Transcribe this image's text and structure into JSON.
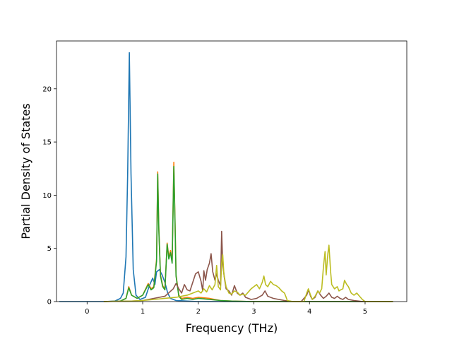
{
  "chart_data": {
    "type": "line",
    "title": "",
    "xlabel": "Frequency (THz)",
    "ylabel": "Partial Density of States",
    "xlim": [
      -0.55,
      5.75
    ],
    "ylim": [
      0,
      24.5
    ],
    "xticks": [
      0,
      1,
      2,
      3,
      4,
      5
    ],
    "yticks": [
      0,
      5,
      10,
      15,
      20
    ],
    "xtick_labels": [
      "0",
      "1",
      "2",
      "3",
      "4",
      "5"
    ],
    "ytick_labels": [
      "0",
      "5",
      "10",
      "15",
      "20"
    ],
    "grid": false,
    "legend": false,
    "series": [
      {
        "color": "#1f77b4",
        "points": [
          [
            -0.5,
            0
          ],
          [
            0.3,
            0
          ],
          [
            0.5,
            0.05
          ],
          [
            0.6,
            0.3
          ],
          [
            0.65,
            0.8
          ],
          [
            0.7,
            4.2
          ],
          [
            0.73,
            12
          ],
          [
            0.76,
            23.4
          ],
          [
            0.79,
            12
          ],
          [
            0.83,
            3
          ],
          [
            0.88,
            0.6
          ],
          [
            0.95,
            0.2
          ],
          [
            1.05,
            0.4
          ],
          [
            1.12,
            1.5
          ],
          [
            1.18,
            2.2
          ],
          [
            1.22,
            1.6
          ],
          [
            1.25,
            2.8
          ],
          [
            1.3,
            3.0
          ],
          [
            1.35,
            2.5
          ],
          [
            1.4,
            1.8
          ],
          [
            1.45,
            0.8
          ],
          [
            1.5,
            0.3
          ],
          [
            1.6,
            0.1
          ],
          [
            1.8,
            0.05
          ],
          [
            2.0,
            0
          ],
          [
            5.5,
            0
          ]
        ]
      },
      {
        "color": "#ff7f0e",
        "points": [
          [
            0.3,
            0
          ],
          [
            0.6,
            0.05
          ],
          [
            0.7,
            0.3
          ],
          [
            0.75,
            1.4
          ],
          [
            0.8,
            0.6
          ],
          [
            0.9,
            0.3
          ],
          [
            1.0,
            0.6
          ],
          [
            1.1,
            1.7
          ],
          [
            1.15,
            1.2
          ],
          [
            1.2,
            1.4
          ],
          [
            1.25,
            4.0
          ],
          [
            1.27,
            12.2
          ],
          [
            1.29,
            7
          ],
          [
            1.32,
            2.5
          ],
          [
            1.36,
            1.5
          ],
          [
            1.4,
            1.2
          ],
          [
            1.44,
            5.5
          ],
          [
            1.47,
            4.2
          ],
          [
            1.5,
            4.8
          ],
          [
            1.53,
            3.8
          ],
          [
            1.56,
            13.1
          ],
          [
            1.58,
            8
          ],
          [
            1.6,
            2.5
          ],
          [
            1.65,
            0.6
          ],
          [
            1.7,
            0.3
          ],
          [
            1.8,
            0.4
          ],
          [
            1.9,
            0.3
          ],
          [
            2.0,
            0.4
          ],
          [
            2.2,
            0.3
          ],
          [
            2.4,
            0.1
          ],
          [
            2.6,
            0.05
          ],
          [
            3.0,
            0
          ],
          [
            5.5,
            0
          ]
        ]
      },
      {
        "color": "#2ca02c",
        "points": [
          [
            0.3,
            0
          ],
          [
            0.6,
            0.05
          ],
          [
            0.7,
            0.3
          ],
          [
            0.75,
            1.3
          ],
          [
            0.8,
            0.6
          ],
          [
            0.9,
            0.3
          ],
          [
            1.0,
            0.6
          ],
          [
            1.1,
            1.6
          ],
          [
            1.15,
            1.1
          ],
          [
            1.2,
            1.3
          ],
          [
            1.25,
            3.8
          ],
          [
            1.27,
            12.0
          ],
          [
            1.29,
            6.8
          ],
          [
            1.32,
            2.4
          ],
          [
            1.36,
            1.4
          ],
          [
            1.4,
            1.1
          ],
          [
            1.44,
            5.4
          ],
          [
            1.47,
            4.0
          ],
          [
            1.5,
            4.6
          ],
          [
            1.53,
            3.6
          ],
          [
            1.56,
            12.7
          ],
          [
            1.58,
            7.8
          ],
          [
            1.6,
            2.4
          ],
          [
            1.65,
            0.5
          ],
          [
            1.7,
            0.2
          ],
          [
            1.8,
            0.3
          ],
          [
            1.9,
            0.2
          ],
          [
            2.0,
            0.3
          ],
          [
            2.2,
            0.2
          ],
          [
            2.4,
            0.1
          ],
          [
            2.6,
            0.05
          ],
          [
            3.0,
            0
          ],
          [
            5.5,
            0
          ]
        ]
      },
      {
        "color": "#8c564b",
        "points": [
          [
            0.3,
            0
          ],
          [
            0.8,
            0.05
          ],
          [
            1.0,
            0.1
          ],
          [
            1.2,
            0.3
          ],
          [
            1.4,
            0.5
          ],
          [
            1.55,
            1.2
          ],
          [
            1.6,
            1.7
          ],
          [
            1.65,
            1.2
          ],
          [
            1.7,
            0.8
          ],
          [
            1.75,
            1.6
          ],
          [
            1.8,
            1.1
          ],
          [
            1.85,
            1.0
          ],
          [
            1.9,
            1.8
          ],
          [
            1.95,
            2.6
          ],
          [
            2.0,
            2.8
          ],
          [
            2.05,
            1.9
          ],
          [
            2.08,
            1.0
          ],
          [
            2.1,
            2.9
          ],
          [
            2.13,
            2.0
          ],
          [
            2.16,
            3.0
          ],
          [
            2.2,
            3.6
          ],
          [
            2.23,
            4.5
          ],
          [
            2.26,
            2.8
          ],
          [
            2.3,
            2.0
          ],
          [
            2.33,
            2.6
          ],
          [
            2.36,
            2.0
          ],
          [
            2.4,
            1.5
          ],
          [
            2.42,
            6.6
          ],
          [
            2.44,
            3.5
          ],
          [
            2.47,
            2.2
          ],
          [
            2.5,
            1.2
          ],
          [
            2.55,
            1.0
          ],
          [
            2.6,
            0.6
          ],
          [
            2.65,
            1.5
          ],
          [
            2.7,
            0.8
          ],
          [
            2.75,
            0.6
          ],
          [
            2.8,
            0.8
          ],
          [
            2.85,
            0.4
          ],
          [
            2.95,
            0.2
          ],
          [
            3.05,
            0.3
          ],
          [
            3.15,
            0.6
          ],
          [
            3.2,
            1.0
          ],
          [
            3.25,
            0.5
          ],
          [
            3.35,
            0.3
          ],
          [
            3.45,
            0.2
          ],
          [
            3.55,
            0.1
          ],
          [
            3.7,
            0
          ],
          [
            3.85,
            0
          ],
          [
            3.95,
            0.6
          ],
          [
            3.98,
            1.1
          ],
          [
            4.02,
            0.5
          ],
          [
            4.05,
            0.2
          ],
          [
            4.1,
            0.4
          ],
          [
            4.15,
            1.0
          ],
          [
            4.2,
            0.6
          ],
          [
            4.25,
            0.3
          ],
          [
            4.3,
            0.5
          ],
          [
            4.35,
            0.8
          ],
          [
            4.4,
            0.4
          ],
          [
            4.45,
            0.3
          ],
          [
            4.5,
            0.5
          ],
          [
            4.55,
            0.3
          ],
          [
            4.6,
            0.2
          ],
          [
            4.65,
            0.4
          ],
          [
            4.7,
            0.2
          ],
          [
            4.8,
            0.1
          ],
          [
            4.95,
            0
          ],
          [
            5.5,
            0
          ]
        ]
      },
      {
        "color": "#bcbd22",
        "points": [
          [
            0.3,
            0
          ],
          [
            0.8,
            0.05
          ],
          [
            1.0,
            0.1
          ],
          [
            1.2,
            0.2
          ],
          [
            1.4,
            0.3
          ],
          [
            1.6,
            0.4
          ],
          [
            1.8,
            0.6
          ],
          [
            1.9,
            0.8
          ],
          [
            2.0,
            1.0
          ],
          [
            2.05,
            0.8
          ],
          [
            2.1,
            1.2
          ],
          [
            2.15,
            0.9
          ],
          [
            2.2,
            1.5
          ],
          [
            2.25,
            1.1
          ],
          [
            2.3,
            1.6
          ],
          [
            2.33,
            3.4
          ],
          [
            2.36,
            1.4
          ],
          [
            2.4,
            1.1
          ],
          [
            2.42,
            3.6
          ],
          [
            2.44,
            4.4
          ],
          [
            2.46,
            2.6
          ],
          [
            2.5,
            1.4
          ],
          [
            2.55,
            0.8
          ],
          [
            2.6,
            0.7
          ],
          [
            2.65,
            1.0
          ],
          [
            2.7,
            0.9
          ],
          [
            2.75,
            0.6
          ],
          [
            2.8,
            0.7
          ],
          [
            2.85,
            0.6
          ],
          [
            2.9,
            0.9
          ],
          [
            2.95,
            1.2
          ],
          [
            3.0,
            1.4
          ],
          [
            3.05,
            1.6
          ],
          [
            3.1,
            1.2
          ],
          [
            3.15,
            1.8
          ],
          [
            3.18,
            2.4
          ],
          [
            3.21,
            1.6
          ],
          [
            3.25,
            1.4
          ],
          [
            3.3,
            1.9
          ],
          [
            3.35,
            1.6
          ],
          [
            3.4,
            1.5
          ],
          [
            3.45,
            1.3
          ],
          [
            3.5,
            1.0
          ],
          [
            3.55,
            0.8
          ],
          [
            3.58,
            0.4
          ],
          [
            3.6,
            0.1
          ],
          [
            3.7,
            0
          ],
          [
            3.9,
            0
          ],
          [
            3.95,
            0.8
          ],
          [
            3.98,
            1.2
          ],
          [
            4.02,
            0.6
          ],
          [
            4.05,
            0.2
          ],
          [
            4.1,
            0.5
          ],
          [
            4.15,
            1.0
          ],
          [
            4.18,
            0.8
          ],
          [
            4.22,
            1.2
          ],
          [
            4.25,
            3.2
          ],
          [
            4.28,
            4.7
          ],
          [
            4.3,
            2.5
          ],
          [
            4.33,
            4.5
          ],
          [
            4.35,
            5.3
          ],
          [
            4.38,
            2.8
          ],
          [
            4.4,
            1.6
          ],
          [
            4.45,
            1.2
          ],
          [
            4.5,
            1.4
          ],
          [
            4.53,
            1.0
          ],
          [
            4.56,
            1.1
          ],
          [
            4.6,
            1.2
          ],
          [
            4.63,
            2.0
          ],
          [
            4.67,
            1.6
          ],
          [
            4.7,
            1.4
          ],
          [
            4.75,
            0.8
          ],
          [
            4.8,
            0.6
          ],
          [
            4.85,
            0.8
          ],
          [
            4.9,
            0.5
          ],
          [
            4.95,
            0.2
          ],
          [
            5.0,
            0
          ],
          [
            5.5,
            0
          ]
        ]
      }
    ]
  }
}
